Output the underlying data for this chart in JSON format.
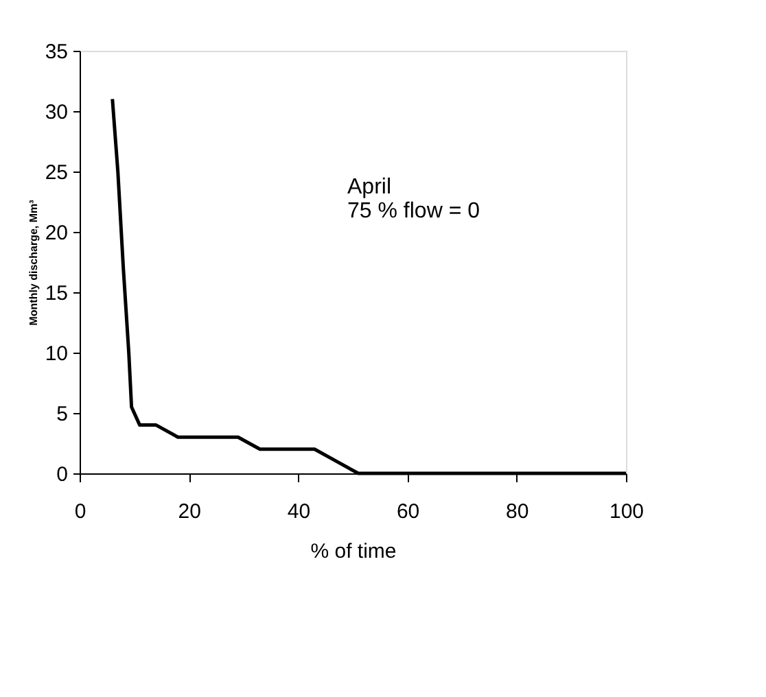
{
  "chart_data": {
    "type": "line",
    "xlabel": "% of time",
    "ylabel": "Monthly discharge, Mm³",
    "annotations": [
      "April",
      "75 % flow = 0"
    ],
    "series": [
      {
        "color": "#000000",
        "x": [
          6,
          7,
          8,
          9,
          9.5,
          11,
          14,
          18,
          29,
          33,
          43,
          47,
          51,
          100
        ],
        "values": [
          31,
          25,
          17,
          10,
          5.5,
          4,
          4,
          3,
          3,
          2,
          2,
          1,
          0,
          0
        ]
      }
    ],
    "xlim": [
      0,
      100
    ],
    "xticks": [
      0,
      20,
      40,
      60,
      80,
      100
    ],
    "ylim": [
      0,
      35
    ],
    "yticks": [
      0,
      5,
      10,
      15,
      20,
      25,
      30,
      35
    ],
    "grid": false,
    "marker": "none",
    "line_style": "solid"
  }
}
